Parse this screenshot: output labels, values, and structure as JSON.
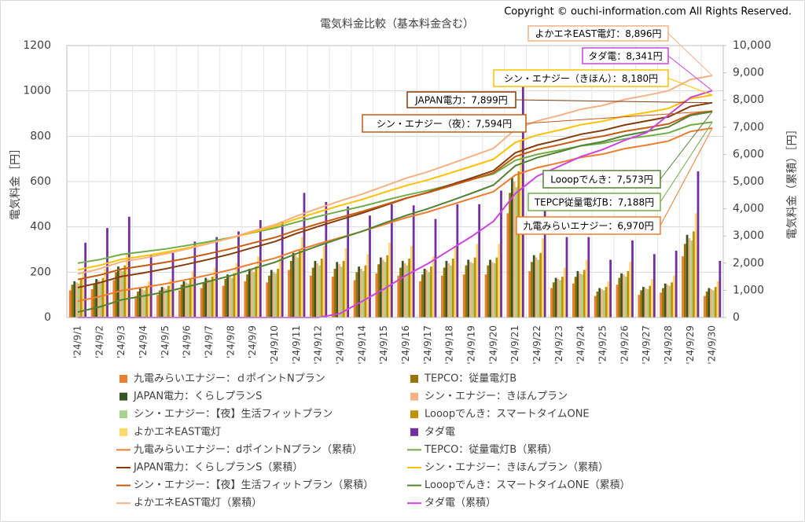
{
  "chart_data": {
    "type": "combo",
    "title": "電気料金比較（基本料金含む）",
    "copyright": "Copyright © ouchi-information.com All Rights Reserved.",
    "ylabel": "電気料金［円］",
    "y2label": "電気料金（累積）［円］",
    "ylim": [
      0,
      1200
    ],
    "yticks": [
      0,
      200,
      400,
      600,
      800,
      1000,
      1200
    ],
    "y2lim": [
      0,
      10000
    ],
    "y2ticks": [
      0,
      {
        "value": 1000,
        "label": "1,000"
      },
      {
        "value": 2000,
        "label": "2,000"
      },
      {
        "value": 3000,
        "label": "3,000"
      },
      {
        "value": 4000,
        "label": "4,000"
      },
      {
        "value": 5000,
        "label": "5,000"
      },
      {
        "value": 6000,
        "label": "6,000"
      },
      {
        "value": 7000,
        "label": "7,000"
      },
      {
        "value": 8000,
        "label": "8,000"
      },
      {
        "value": 9000,
        "label": "9,000"
      },
      {
        "value": 10000,
        "label": "10,000"
      }
    ],
    "grid": true,
    "categories": [
      "'24/9/1",
      "'24/9/2",
      "'24/9/3",
      "'24/9/4",
      "'24/9/5",
      "'24/9/6",
      "'24/9/7",
      "'24/9/8",
      "'24/9/9",
      "'24/9/10",
      "'24/9/11",
      "'24/9/12",
      "'24/9/13",
      "'24/9/14",
      "'24/9/15",
      "'24/9/16",
      "'24/9/17",
      "'24/9/18",
      "'24/9/19",
      "'24/9/20",
      "'24/9/21",
      "'24/9/22",
      "'24/9/23",
      "'24/9/24",
      "'24/9/25",
      "'24/9/26",
      "'24/9/27",
      "'24/9/28",
      "'24/9/29",
      "'24/9/30"
    ],
    "series": [
      {
        "name": "九電みらいエナジー：ｄポイントNプラン",
        "type": "bar",
        "color": "#ed7d31",
        "values": [
          120,
          125,
          165,
          95,
          100,
          120,
          130,
          140,
          160,
          155,
          210,
          185,
          180,
          165,
          195,
          185,
          160,
          185,
          190,
          190,
          460,
          205,
          130,
          150,
          95,
          145,
          100,
          110,
          270,
          95
        ]
      },
      {
        "name": "TEPCO：従量電灯B",
        "type": "bar",
        "color": "#997300",
        "values": [
          145,
          150,
          200,
          115,
          120,
          145,
          155,
          170,
          190,
          185,
          250,
          220,
          215,
          200,
          235,
          220,
          190,
          220,
          230,
          230,
          550,
          245,
          155,
          180,
          115,
          175,
          120,
          130,
          325,
          115
        ]
      },
      {
        "name": "JAPAN電力：くらしプランS",
        "type": "bar",
        "color": "#375623",
        "values": [
          160,
          170,
          225,
          130,
          135,
          160,
          175,
          190,
          215,
          210,
          285,
          250,
          245,
          225,
          265,
          250,
          215,
          250,
          255,
          255,
          620,
          275,
          175,
          205,
          130,
          195,
          135,
          150,
          365,
          130
        ]
      },
      {
        "name": "シン・エナジー：きほんプラン",
        "type": "bar",
        "color": "#f4b183",
        "values": [
          155,
          165,
          215,
          125,
          130,
          155,
          170,
          180,
          210,
          200,
          275,
          240,
          235,
          215,
          255,
          240,
          210,
          240,
          245,
          245,
          600,
          265,
          170,
          195,
          125,
          190,
          130,
          145,
          350,
          125
        ]
      },
      {
        "name": "シン・エナジー：【夜】生活フィットプラン",
        "type": "bar",
        "color": "#a9d18e",
        "values": [
          150,
          155,
          205,
          120,
          125,
          150,
          165,
          175,
          200,
          195,
          265,
          230,
          225,
          205,
          245,
          230,
          200,
          230,
          240,
          240,
          575,
          255,
          165,
          190,
          120,
          180,
          125,
          140,
          340,
          120
        ]
      },
      {
        "name": "Looopでんき：スマートタイムONE",
        "type": "bar",
        "color": "#bf9000",
        "values": [
          170,
          175,
          230,
          135,
          140,
          170,
          180,
          195,
          225,
          215,
          295,
          260,
          250,
          230,
          275,
          260,
          225,
          260,
          265,
          265,
          645,
          285,
          180,
          210,
          135,
          205,
          140,
          155,
          380,
          135
        ]
      },
      {
        "name": "よかエネEAST電灯",
        "type": "bar",
        "color": "#ffd966",
        "values": [
          205,
          215,
          280,
          160,
          170,
          205,
          220,
          240,
          270,
          265,
          355,
          315,
          305,
          280,
          330,
          315,
          270,
          315,
          325,
          325,
          780,
          350,
          220,
          255,
          160,
          245,
          170,
          185,
          460,
          160
        ]
      },
      {
        "name": "タダ電",
        "type": "bar",
        "color": "#7030a0",
        "values": [
          330,
          395,
          445,
          275,
          285,
          335,
          355,
          380,
          430,
          420,
          550,
          510,
          490,
          450,
          500,
          495,
          435,
          500,
          500,
          560,
          1020,
          490,
          355,
          355,
          255,
          340,
          280,
          295,
          645,
          250
        ]
      },
      {
        "name": "九電みらいエナジー：dポイントNプラン（累積）",
        "type": "line",
        "axis": "y2",
        "color": "#ed7d31",
        "values": [
          600,
          770,
          990,
          1110,
          1240,
          1400,
          1570,
          1760,
          1980,
          2180,
          2460,
          2710,
          2940,
          3170,
          3420,
          3670,
          3880,
          4130,
          4380,
          4630,
          5240,
          5510,
          5690,
          5890,
          6010,
          6210,
          6340,
          6490,
          6840,
          6970
        ]
      },
      {
        "name": "TEPCO：従量電灯B（累積）",
        "type": "line",
        "axis": "y2",
        "color": "#70ad47",
        "values": [
          2000,
          2130,
          2320,
          2420,
          2520,
          2650,
          2790,
          2940,
          3120,
          3290,
          3510,
          3720,
          3910,
          4090,
          4300,
          4500,
          4670,
          4870,
          5080,
          5280,
          5780,
          6000,
          6150,
          6310,
          6410,
          6570,
          6670,
          6790,
          7080,
          7188
        ]
      },
      {
        "name": "JAPAN電力：くらしプランS（累積）",
        "type": "line",
        "axis": "y2",
        "color": "#843c0c",
        "values": [
          1100,
          1280,
          1510,
          1640,
          1790,
          1960,
          2140,
          2340,
          2570,
          2790,
          3090,
          3350,
          3600,
          3840,
          4110,
          4380,
          4600,
          4870,
          5130,
          5400,
          6060,
          6340,
          6530,
          6740,
          6880,
          7080,
          7230,
          7380,
          7760,
          7899
        ]
      },
      {
        "name": "シン・エナジー：きほんプラン（累積）",
        "type": "line",
        "axis": "y2",
        "color": "#ffc000",
        "values": [
          1750,
          1920,
          2140,
          2260,
          2400,
          2560,
          2730,
          2920,
          3140,
          3350,
          3630,
          3880,
          4120,
          4340,
          4600,
          4850,
          5060,
          5310,
          5560,
          5820,
          6440,
          6710,
          6890,
          7090,
          7220,
          7410,
          7540,
          7690,
          8050,
          8180
        ]
      },
      {
        "name": "シン・エナジー：【夜】生活フィットプラン（累積）",
        "type": "line",
        "axis": "y2",
        "color": "#c55a11",
        "values": [
          1400,
          1560,
          1780,
          1900,
          2030,
          2180,
          2350,
          2530,
          2740,
          2940,
          3210,
          3450,
          3680,
          3900,
          4140,
          4390,
          4590,
          4830,
          5070,
          5320,
          5920,
          6180,
          6350,
          6540,
          6670,
          6850,
          6980,
          7120,
          7470,
          7594
        ]
      },
      {
        "name": "Looopでんき：スマートタイムONE（累積）",
        "type": "line",
        "axis": "y2",
        "color": "#548235",
        "values": [
          200,
          390,
          650,
          790,
          940,
          1130,
          1330,
          1540,
          1790,
          2030,
          2350,
          2640,
          2910,
          3170,
          3470,
          3750,
          4000,
          4280,
          4570,
          4870,
          5580,
          5880,
          6090,
          6320,
          6470,
          6690,
          6840,
          7010,
          7430,
          7573
        ]
      },
      {
        "name": "よかエネEAST電灯（累積）",
        "type": "line",
        "axis": "y2",
        "color": "#f4b183",
        "values": [
          1600,
          1790,
          2050,
          2180,
          2340,
          2520,
          2720,
          2930,
          3180,
          3410,
          3730,
          4020,
          4290,
          4540,
          4830,
          5120,
          5360,
          5640,
          5930,
          6220,
          6920,
          7230,
          7430,
          7660,
          7800,
          8020,
          8170,
          8340,
          8750,
          8896
        ]
      },
      {
        "name": "タダ電（累積）",
        "type": "line",
        "axis": "y2",
        "color": "#cc44dd",
        "values": [
          0,
          0,
          0,
          0,
          0,
          0,
          0,
          0,
          0,
          0,
          0,
          0,
          150,
          600,
          1050,
          1550,
          1980,
          2480,
          2980,
          3540,
          4560,
          5200,
          5560,
          5920,
          6180,
          6520,
          6800,
          7450,
          8090,
          8341
        ]
      }
    ],
    "annotations": [
      {
        "text": "よかエネEAST電灯：8,896円",
        "color": "#f4b183"
      },
      {
        "text": "タダ電：8,341円",
        "color": "#cc44dd"
      },
      {
        "text": "シン・エナジー（きほん）：8,180円",
        "color": "#ffc000"
      },
      {
        "text": "JAPAN電力：7,899円",
        "color": "#843c0c"
      },
      {
        "text": "シン・エナジー（夜）：7,594円",
        "color": "#c55a11"
      },
      {
        "text": "Looopでんき：7,573円",
        "color": "#548235"
      },
      {
        "text": "TEPCP従量電灯B：7,188円",
        "color": "#70ad47"
      },
      {
        "text": "九電みらいエナジー：6,970円",
        "color": "#ed7d31"
      }
    ]
  }
}
